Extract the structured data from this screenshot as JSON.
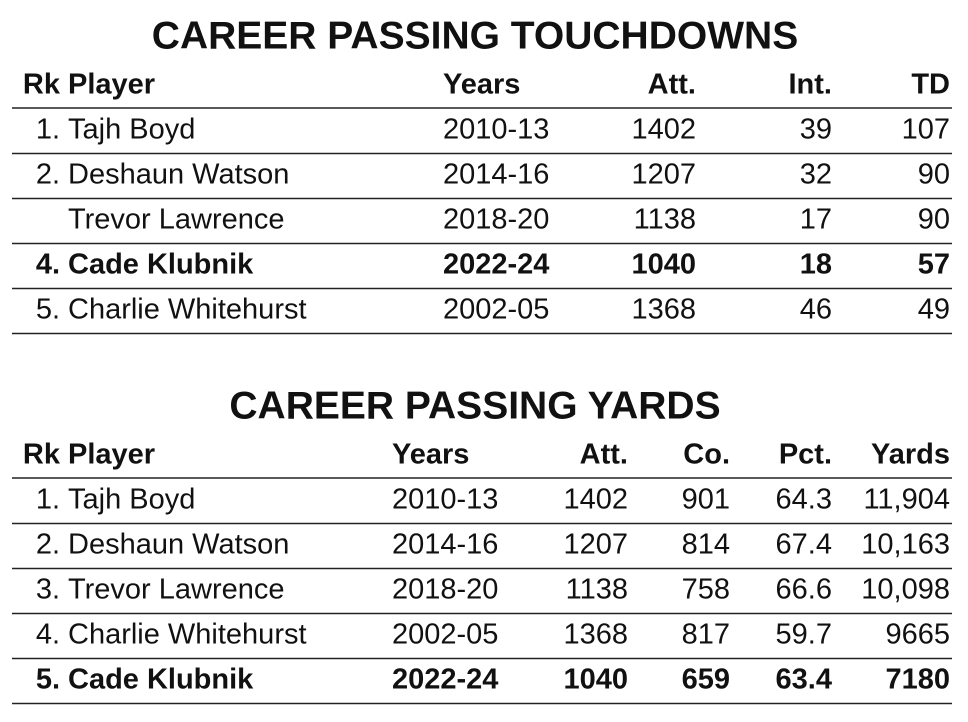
{
  "tables": [
    {
      "title": "CAREER PASSING TOUCHDOWNS",
      "header": [
        "Rk",
        "Player",
        "Years",
        "Att.",
        "Int.",
        "TD"
      ],
      "rows": [
        {
          "cells": [
            "1.",
            "Tajh Boyd",
            "2010-13",
            "1402",
            "39",
            "107"
          ],
          "bold": false
        },
        {
          "cells": [
            "2.",
            "Deshaun Watson",
            "2014-16",
            "1207",
            "32",
            "90"
          ],
          "bold": false
        },
        {
          "cells": [
            null,
            "Trevor Lawrence",
            "2018-20",
            "1138",
            "17",
            "90"
          ],
          "bold": false
        },
        {
          "cells": [
            "4.",
            "Cade Klubnik",
            "2022-24",
            "1040",
            "18",
            "57"
          ],
          "bold": true
        },
        {
          "cells": [
            "5.",
            "Charlie Whitehurst",
            "2002-05",
            "1368",
            "46",
            "49"
          ],
          "bold": false
        }
      ]
    },
    {
      "title": "CAREER PASSING YARDS",
      "header": [
        "Rk",
        "Player",
        "Years",
        "Att.",
        "Co.",
        "Pct.",
        "Yards"
      ],
      "rows": [
        {
          "cells": [
            "1.",
            "Tajh Boyd",
            "2010-13",
            "1402",
            "901",
            "64.3",
            "11,904"
          ],
          "bold": false
        },
        {
          "cells": [
            "2.",
            "Deshaun Watson",
            "2014-16",
            "1207",
            "814",
            "67.4",
            "10,163"
          ],
          "bold": false
        },
        {
          "cells": [
            "3.",
            "Trevor Lawrence",
            "2018-20",
            "1138",
            "758",
            "66.6",
            "10,098"
          ],
          "bold": false
        },
        {
          "cells": [
            "4.",
            "Charlie Whitehurst",
            "2002-05",
            "1368",
            "817",
            "59.7",
            "9665"
          ],
          "bold": false
        },
        {
          "cells": [
            "5.",
            "Cade Klubnik",
            "2022-24",
            "1040",
            "659",
            "63.4",
            "7180"
          ],
          "bold": true
        }
      ]
    }
  ]
}
